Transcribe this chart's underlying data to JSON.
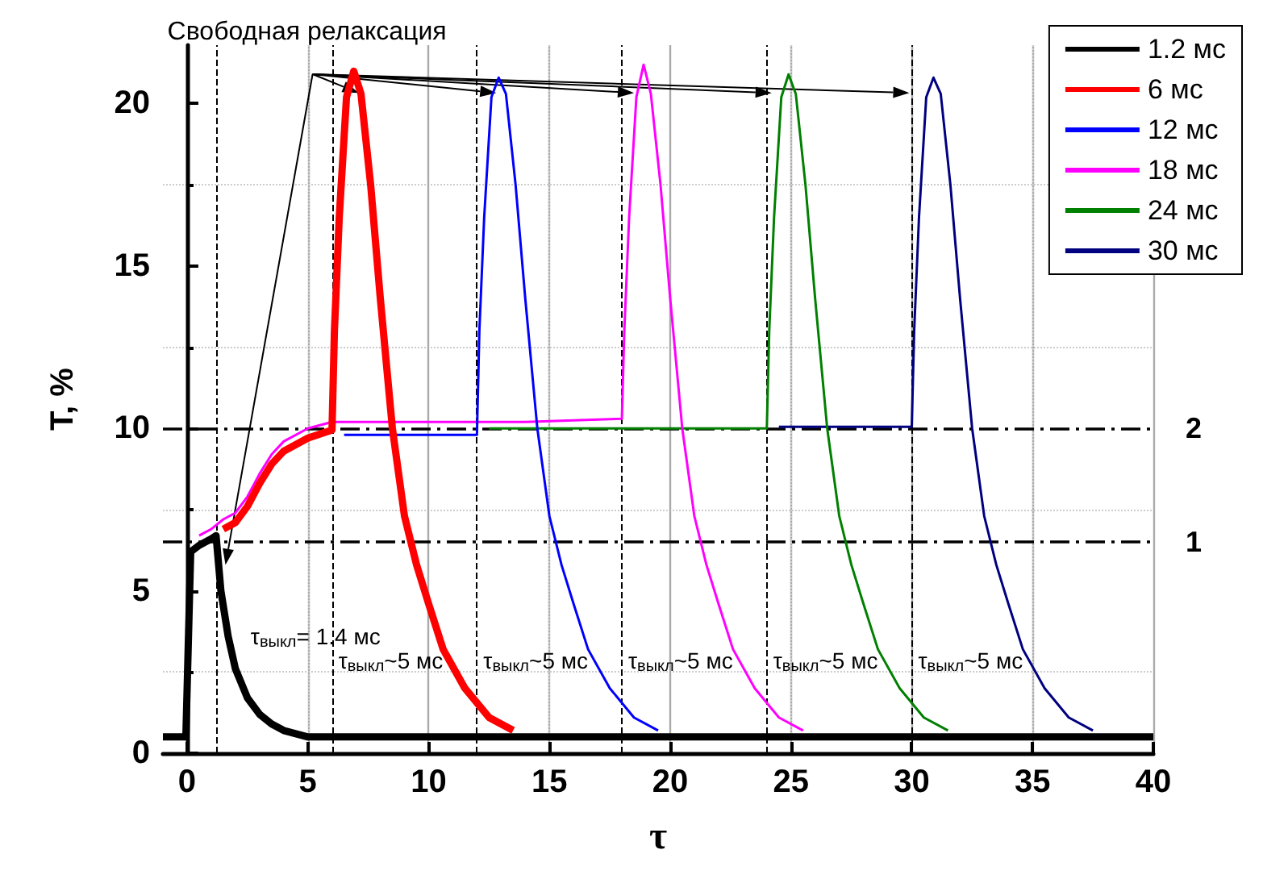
{
  "chart_data": {
    "type": "line",
    "xlabel": "τ",
    "ylabel": "T, %",
    "xlim": [
      -1,
      40
    ],
    "xticks": [
      0,
      5,
      10,
      15,
      20,
      25,
      30,
      35,
      40
    ],
    "ylim": [
      0,
      21.8
    ],
    "yticks": [
      0,
      5,
      10,
      15,
      20
    ],
    "grid": true,
    "legend": "top right",
    "marker": "none",
    "line_style": "solid",
    "series": [
      {
        "name": "1.2 мс",
        "color": "#000000",
        "x": [
          -1,
          -0.05,
          0.15,
          0.5,
          1,
          1.2,
          1.4,
          1.7,
          2,
          2.5,
          3,
          3.5,
          4,
          5,
          40
        ],
        "values": [
          0.5,
          0.5,
          6.2,
          6.4,
          6.6,
          6.7,
          5.0,
          3.6,
          2.6,
          1.7,
          1.2,
          0.9,
          0.7,
          0.5,
          0.5
        ]
      },
      {
        "name": "6 мс",
        "color": "#ff0000",
        "x": [
          1.5,
          2,
          2.5,
          3,
          3.5,
          4,
          5,
          6,
          6.1,
          6.3,
          6.6,
          6.9,
          7.2,
          7.6,
          8,
          8.5,
          9,
          9.5,
          10,
          10.6,
          11.5,
          12.5,
          13.5
        ],
        "values": [
          6.9,
          7.1,
          7.6,
          8.3,
          8.9,
          9.3,
          9.7,
          9.95,
          13,
          16.5,
          20.2,
          21,
          20.3,
          17.5,
          14,
          10,
          7.3,
          5.8,
          4.6,
          3.2,
          2.0,
          1.1,
          0.7
        ]
      },
      {
        "name": "12 мс",
        "color": "#0000ff",
        "x": [
          6.5,
          8,
          10,
          12,
          12.1,
          12.3,
          12.6,
          12.9,
          13.2,
          13.6,
          14,
          14.5,
          15,
          15.5,
          16,
          16.6,
          17.5,
          18.5,
          19.5
        ],
        "values": [
          9.8,
          9.8,
          9.8,
          9.8,
          13,
          16.5,
          20.2,
          20.8,
          20.3,
          17.5,
          14,
          10,
          7.3,
          5.8,
          4.6,
          3.2,
          2.0,
          1.1,
          0.7
        ]
      },
      {
        "name": "18 мс",
        "color": "#ff00ff",
        "x": [
          0.5,
          1,
          1.5,
          2,
          2.5,
          3,
          3.5,
          4,
          5,
          6,
          8,
          10,
          12,
          14,
          16,
          18,
          18.1,
          18.3,
          18.6,
          18.9,
          19.2,
          19.6,
          20,
          20.5,
          21,
          21.5,
          22,
          22.6,
          23.5,
          24.5,
          25.5
        ],
        "values": [
          6.7,
          6.9,
          7.2,
          7.4,
          7.9,
          8.6,
          9.2,
          9.6,
          10.0,
          10.2,
          10.2,
          10.2,
          10.2,
          10.2,
          10.25,
          10.3,
          13,
          16.5,
          20.2,
          21.2,
          20.3,
          17.5,
          14,
          10,
          7.3,
          5.8,
          4.6,
          3.2,
          2.0,
          1.1,
          0.7
        ]
      },
      {
        "name": "24 мс",
        "color": "#008000",
        "x": [
          12.5,
          14,
          16,
          18,
          20,
          22,
          24,
          24.1,
          24.3,
          24.6,
          24.9,
          25.2,
          25.6,
          26,
          26.5,
          27,
          27.5,
          28,
          28.6,
          29.5,
          30.5,
          31.5
        ],
        "values": [
          10,
          10,
          10,
          10,
          10,
          10,
          10,
          13,
          16.5,
          20.2,
          20.9,
          20.3,
          17.5,
          14,
          10,
          7.3,
          5.8,
          4.6,
          3.2,
          2.0,
          1.1,
          0.7
        ]
      },
      {
        "name": "30 мс",
        "color": "#000080",
        "x": [
          24.5,
          26,
          28,
          30,
          30.1,
          30.3,
          30.6,
          30.9,
          31.2,
          31.6,
          32,
          32.5,
          33,
          33.5,
          34,
          34.6,
          35.5,
          36.5,
          37.5
        ],
        "values": [
          10.05,
          10.05,
          10.05,
          10.05,
          13,
          16.5,
          20.2,
          20.8,
          20.3,
          17.5,
          14,
          10,
          7.3,
          5.8,
          4.6,
          3.2,
          2.0,
          1.1,
          0.7
        ]
      }
    ],
    "ref_lines": [
      {
        "axis": "y",
        "value": 10,
        "color": "#000000",
        "line_style": "dashed"
      },
      {
        "axis": "y",
        "value": 6.5,
        "color": "#000000",
        "line_style": "dashed"
      },
      {
        "axis": "x",
        "value": 1.2,
        "color": "#000000",
        "line_style": "dashed"
      },
      {
        "axis": "x",
        "value": 6,
        "color": "#000000",
        "line_style": "dashed"
      },
      {
        "axis": "x",
        "value": 12,
        "color": "#000000",
        "line_style": "dashed"
      },
      {
        "axis": "x",
        "value": 18,
        "color": "#000000",
        "line_style": "dashed"
      },
      {
        "axis": "x",
        "value": 24,
        "color": "#000000",
        "line_style": "dashed"
      },
      {
        "axis": "x",
        "value": 30,
        "color": "#000000",
        "line_style": "dashed"
      }
    ],
    "annotations": [
      {
        "text": "Свободная релаксация",
        "x": 7.2,
        "y": 20.3
      },
      {
        "text": "τ$_{выкл}$= 1.4 мс",
        "x": 1.7,
        "y": 3.6
      },
      {
        "text": "τ$_{выкл}$~5 мс",
        "x": 6,
        "y": 2.4
      },
      {
        "text": "τ$_{выкл}$~5 мс",
        "x": 12,
        "y": 2.4
      },
      {
        "text": "τ$_{выкл}$~5 мс",
        "x": 18,
        "y": 2.4
      },
      {
        "text": "τ$_{выкл}$~5 мс",
        "x": 24,
        "y": 2.4
      },
      {
        "text": "τ$_{выкл}$~5 мс",
        "x": 30,
        "y": 2.4
      },
      {
        "text": "2",
        "x": 40,
        "y": 10
      },
      {
        "text": "1",
        "x": 40,
        "y": 6.5
      }
    ]
  }
}
